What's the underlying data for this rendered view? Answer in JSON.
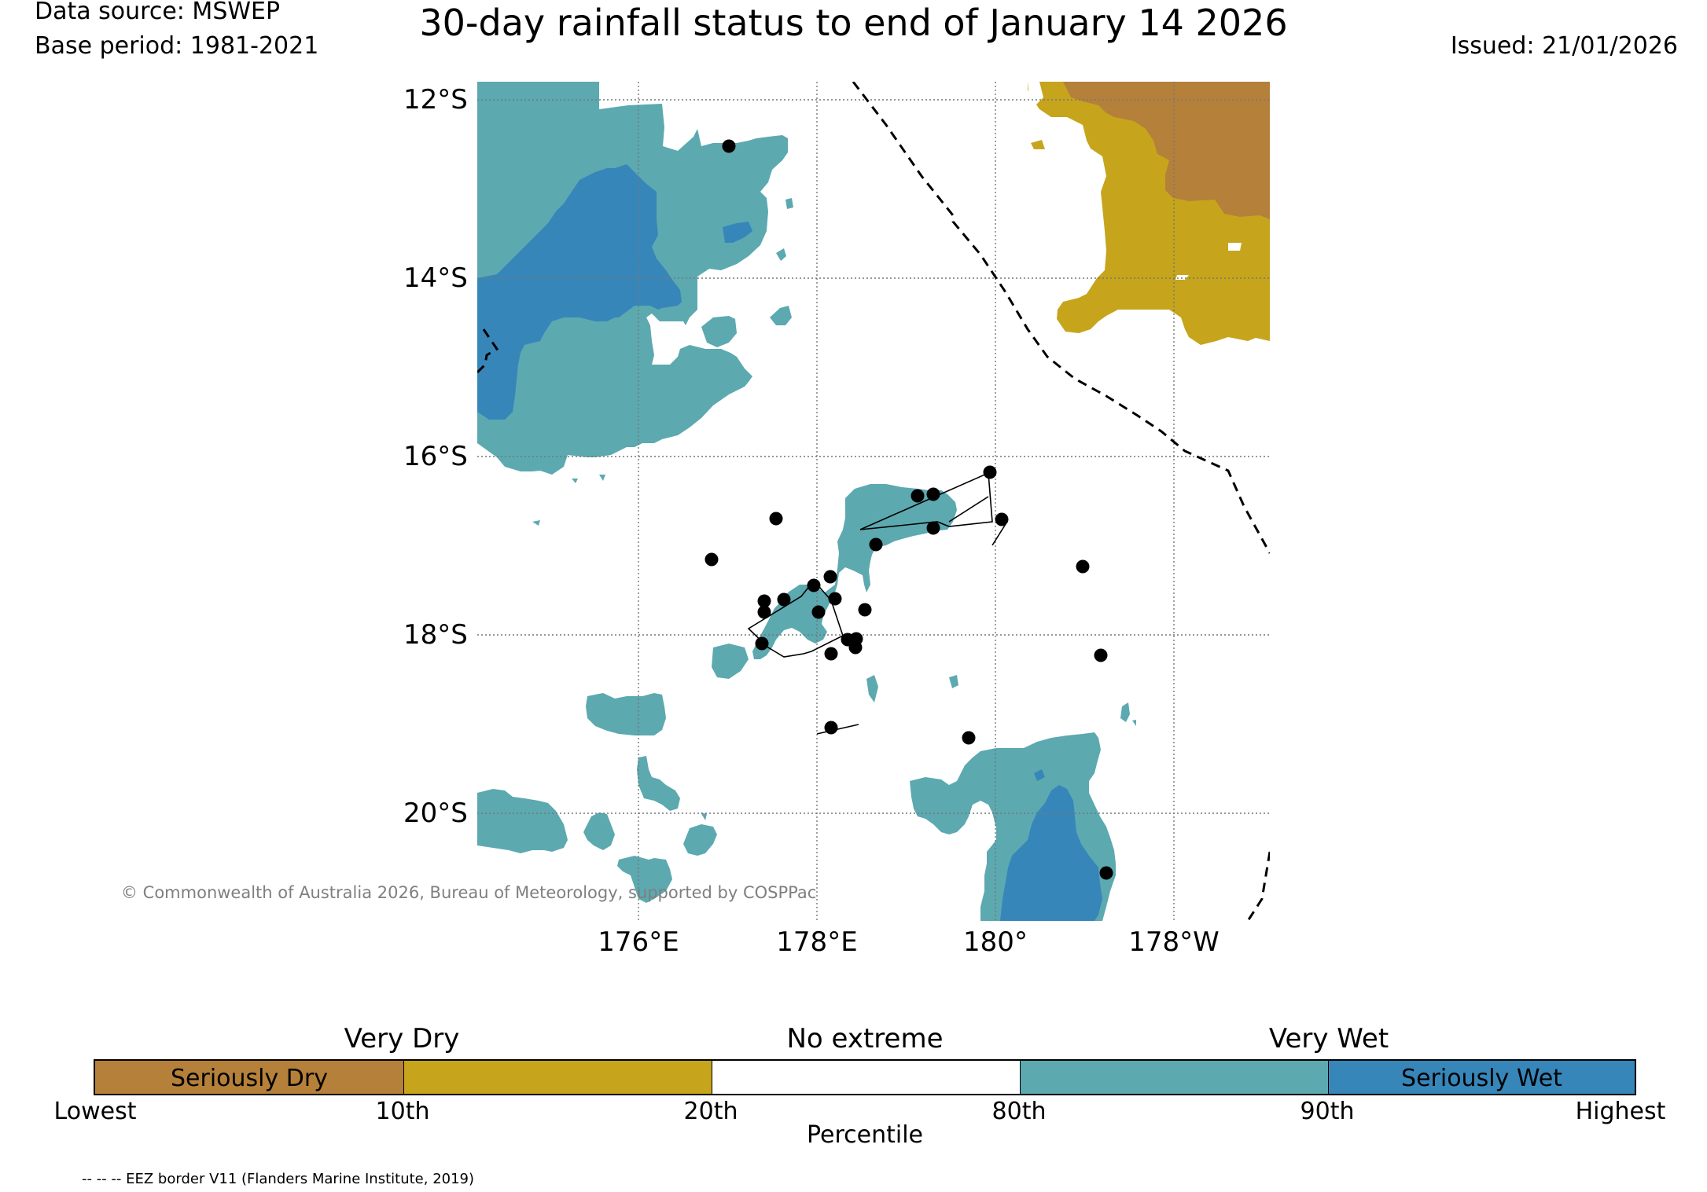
{
  "header": {
    "data_source": "Data source: MSWEP",
    "base_period": "Base period: 1981-2021",
    "title": "30-day rainfall status to end of January 14 2026",
    "issued": "Issued: 21/01/2026"
  },
  "map": {
    "lat_ticks": [
      "12°S",
      "14°S",
      "16°S",
      "18°S",
      "20°S"
    ],
    "lon_ticks": [
      "176°E",
      "178°E",
      "180°",
      "178°W"
    ],
    "copyright": "© Commonwealth of Australia 2026, Bureau of Meteorology, supported by COSPPac",
    "colors": {
      "seriously_dry": "#b5803a",
      "very_dry": "#c6a51c",
      "no_extreme": "#ffffff",
      "very_wet": "#5ca9b0",
      "seriously_wet": "#3786ba",
      "station": "#000000"
    }
  },
  "legend": {
    "group_labels": [
      "Very Dry",
      "No extreme",
      "Very Wet"
    ],
    "segments": [
      {
        "label": "Seriously Dry",
        "color": "#b5803a"
      },
      {
        "label": "",
        "color": "#c6a51c"
      },
      {
        "label": "",
        "color": "#ffffff"
      },
      {
        "label": "",
        "color": "#5ca9b0"
      },
      {
        "label": "Seriously Wet",
        "color": "#3786ba"
      }
    ],
    "tick_labels": [
      "Lowest",
      "10th",
      "20th",
      "80th",
      "90th",
      "Highest"
    ],
    "axis_label": "Percentile"
  },
  "footer": {
    "eez_note": "-- -- -- EEZ border V11 (Flanders Marine Institute, 2019)"
  }
}
